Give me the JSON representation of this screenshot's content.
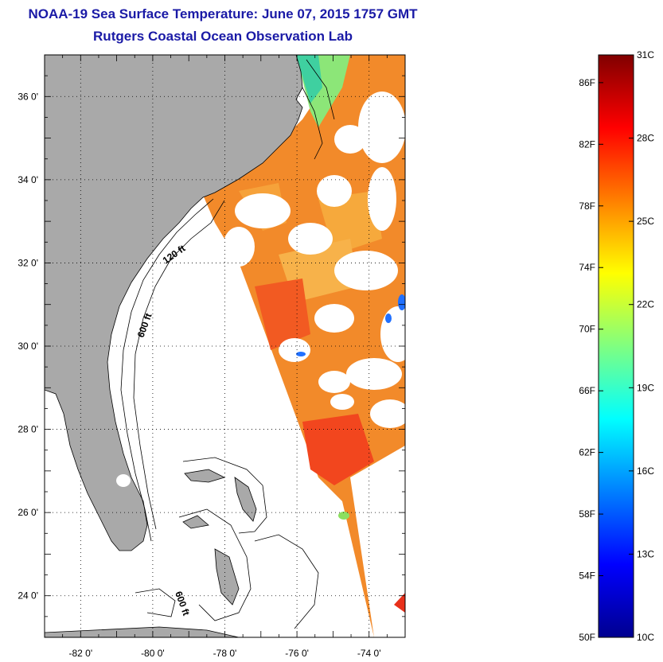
{
  "title": {
    "line1": "NOAA-19 Sea Surface Temperature:  June 07, 2015 1757 GMT",
    "line2": "Rutgers Coastal Ocean Observation Lab"
  },
  "map": {
    "lat_range": [
      23,
      37
    ],
    "lon_range": [
      -83,
      -73
    ],
    "lat_ticks": [
      {
        "value": 24,
        "label": "24 0'"
      },
      {
        "value": 26,
        "label": "26 0'"
      },
      {
        "value": 28,
        "label": "28 0'"
      },
      {
        "value": 30,
        "label": "30 0'"
      },
      {
        "value": 32,
        "label": "32 0'"
      },
      {
        "value": 34,
        "label": "34 0'"
      },
      {
        "value": 36,
        "label": "36 0'"
      }
    ],
    "lon_ticks": [
      {
        "value": -82,
        "label": "-82 0'"
      },
      {
        "value": -80,
        "label": "-80 0'"
      },
      {
        "value": -78,
        "label": "-78 0'"
      },
      {
        "value": -76,
        "label": "-76 0'"
      },
      {
        "value": -74,
        "label": "-74 0'"
      }
    ],
    "grid": "dotted",
    "contour_labels": {
      "c120": "120 ft",
      "c600a": "600 ft",
      "c600b": "600 ft"
    },
    "colors": {
      "land": "#a9a9a9",
      "cloud": "#ffffff",
      "water_warm": "#f07820",
      "water_cool": "#ffd21e"
    }
  },
  "colorbar": {
    "f_labels": [
      "50F",
      "54F",
      "58F",
      "62F",
      "66F",
      "70F",
      "74F",
      "78F",
      "82F",
      "86F"
    ],
    "f_values": [
      50,
      54,
      58,
      62,
      66,
      70,
      74,
      78,
      82,
      86
    ],
    "c_labels": [
      "10C",
      "13C",
      "16C",
      "19C",
      "22C",
      "25C",
      "28C",
      "31C"
    ],
    "c_values": [
      10,
      13,
      16,
      19,
      22,
      25,
      28,
      31
    ],
    "range_c": [
      10,
      31
    ],
    "colormap": "jet"
  }
}
